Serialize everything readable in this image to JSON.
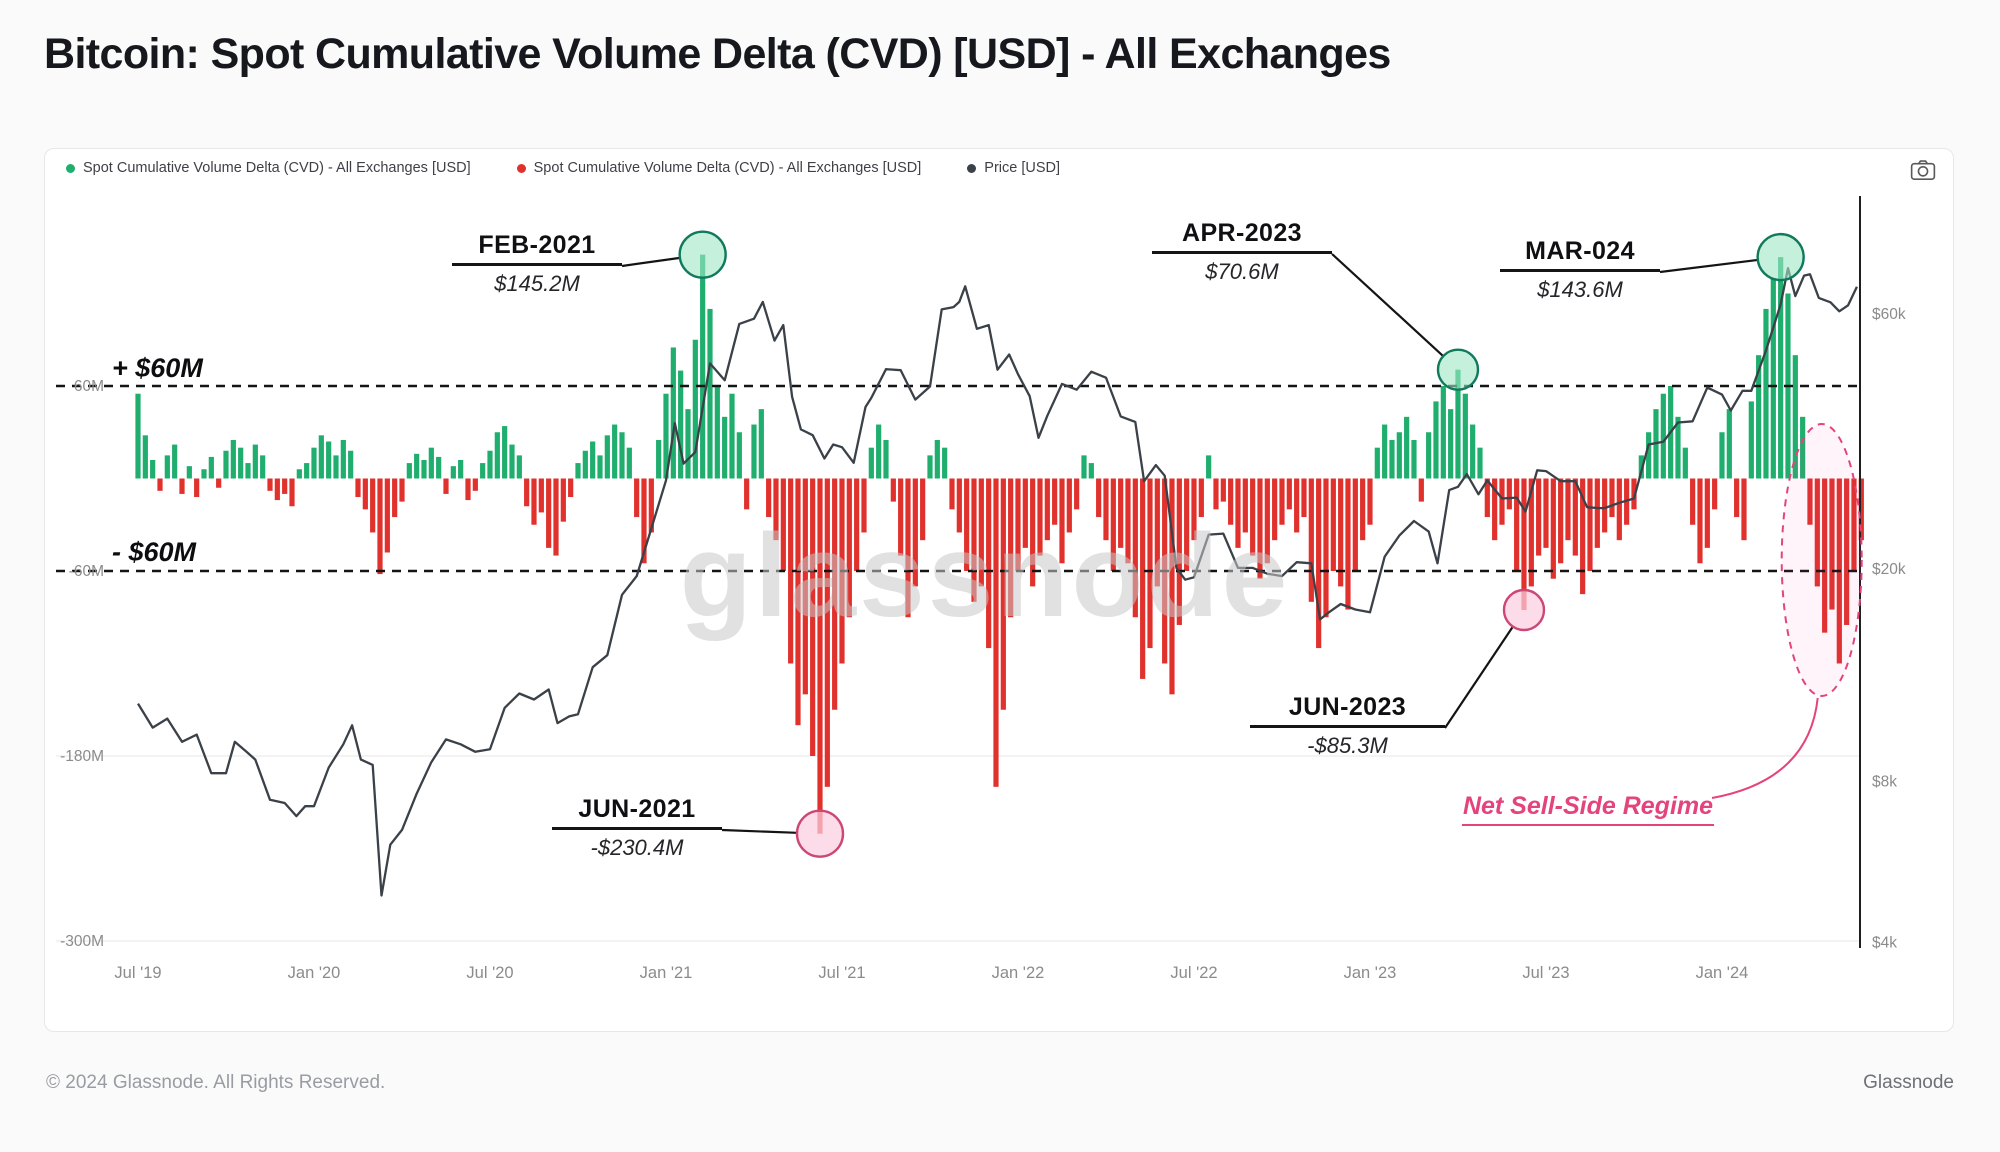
{
  "page": {
    "title": "Bitcoin: Spot Cumulative Volume Delta (CVD) [USD] - All Exchanges",
    "watermark": "glassnode",
    "footer_left": "© 2024 Glassnode. All Rights Reserved.",
    "footer_right": "Glassnode"
  },
  "legend": {
    "items": [
      {
        "label": "Spot Cumulative Volume Delta (CVD) - All Exchanges [USD]",
        "color": "#1fae6e"
      },
      {
        "label": "Spot Cumulative Volume Delta (CVD) - All Exchanges [USD]",
        "color": "#e0312d"
      },
      {
        "label": "Price [USD]",
        "color": "#3b4148"
      }
    ]
  },
  "chart_data": {
    "type": "combo",
    "title": "Bitcoin: Spot Cumulative Volume Delta (CVD) [USD] - All Exchanges",
    "x_tick_labels": [
      "Jul '19",
      "Jan '20",
      "Jul '20",
      "Jan '21",
      "Jul '21",
      "Jan '22",
      "Jul '22",
      "Jan '23",
      "Jul '23",
      "Jan '24"
    ],
    "x_tick_step_months": 6,
    "left_axis": {
      "unit": "USD millions",
      "tick_labels": [
        "60M",
        "-60M",
        "-180M",
        "-300M"
      ],
      "tick_values": [
        60,
        -60,
        -180,
        -300
      ]
    },
    "right_axis": {
      "unit": "USD",
      "scale": "log",
      "tick_labels": [
        "$60k",
        "$20k",
        "$8k",
        "$4k"
      ],
      "tick_values": [
        60000,
        20000,
        8000,
        4000
      ]
    },
    "thresholds": [
      {
        "value": 60,
        "label": "+ $60M",
        "style": "dashed"
      },
      {
        "value": -60,
        "label": "- $60M",
        "style": "dashed"
      }
    ],
    "cvd": {
      "name": "Spot Cumulative Volume Delta (CVD) - All Exchanges [USD]",
      "type": "bar",
      "unit": "M USD",
      "t0_label": "Jul 2019",
      "step_months": 0.25,
      "positive_color": "#1fae6e",
      "negative_color": "#e0312d",
      "values": [
        55,
        28,
        12,
        -8,
        15,
        22,
        -10,
        8,
        -12,
        6,
        14,
        -6,
        18,
        25,
        20,
        10,
        22,
        15,
        -8,
        -14,
        -10,
        -18,
        6,
        10,
        20,
        28,
        24,
        15,
        25,
        18,
        -12,
        -20,
        -35,
        -62,
        -48,
        -25,
        -15,
        10,
        16,
        12,
        20,
        14,
        -10,
        8,
        12,
        -14,
        -8,
        10,
        18,
        30,
        34,
        22,
        15,
        -18,
        -30,
        -22,
        -45,
        -50,
        -28,
        -12,
        10,
        18,
        24,
        15,
        28,
        35,
        30,
        20,
        -25,
        -55,
        -35,
        25,
        55,
        85,
        70,
        45,
        90,
        145.2,
        110,
        60,
        40,
        55,
        30,
        -20,
        35,
        45,
        -25,
        -40,
        -60,
        -120,
        -160,
        -140,
        -180,
        -230.4,
        -200,
        -150,
        -120,
        -90,
        -60,
        -35,
        20,
        35,
        25,
        -15,
        -50,
        -90,
        -70,
        -40,
        15,
        25,
        20,
        -20,
        -35,
        -60,
        -80,
        -70,
        -110,
        -200,
        -150,
        -90,
        -60,
        -45,
        -70,
        -50,
        -40,
        -30,
        -55,
        -35,
        -20,
        15,
        10,
        -25,
        -40,
        -60,
        -45,
        -55,
        -90,
        -130,
        -110,
        -70,
        -120,
        -140,
        -95,
        -60,
        -40,
        -25,
        15,
        -20,
        -15,
        -30,
        -45,
        -35,
        -50,
        -65,
        -55,
        -40,
        -30,
        -20,
        -35,
        -25,
        -80,
        -110,
        -90,
        -60,
        -70,
        -85,
        -60,
        -40,
        -30,
        20,
        35,
        25,
        30,
        40,
        25,
        -15,
        30,
        50,
        60,
        45,
        70.6,
        55,
        35,
        20,
        -25,
        -40,
        -30,
        -20,
        -60,
        -85.3,
        -70,
        -50,
        -45,
        -65,
        -55,
        -40,
        -50,
        -75,
        -60,
        -45,
        -35,
        -25,
        -40,
        -30,
        -20,
        15,
        30,
        45,
        55,
        60,
        40,
        20,
        -30,
        -55,
        -45,
        -20,
        30,
        45,
        -25,
        -40,
        50,
        80,
        110,
        130,
        143.6,
        120,
        80,
        40,
        -30,
        -70,
        -100,
        -85,
        -120,
        -95,
        -60,
        -40
      ]
    },
    "price": {
      "name": "Price [USD]",
      "type": "line",
      "scale": "log",
      "color": "#3b4148",
      "points": [
        [
          0,
          11200
        ],
        [
          0.5,
          10100
        ],
        [
          1,
          10500
        ],
        [
          1.5,
          9500
        ],
        [
          2,
          9800
        ],
        [
          2.5,
          8300
        ],
        [
          3,
          8300
        ],
        [
          3.3,
          9500
        ],
        [
          3.7,
          9100
        ],
        [
          4,
          8800
        ],
        [
          4.5,
          7400
        ],
        [
          5,
          7300
        ],
        [
          5.4,
          6900
        ],
        [
          5.7,
          7200
        ],
        [
          6,
          7200
        ],
        [
          6.5,
          8500
        ],
        [
          7,
          9400
        ],
        [
          7.3,
          10200
        ],
        [
          7.6,
          8800
        ],
        [
          8,
          8600
        ],
        [
          8.3,
          4900
        ],
        [
          8.6,
          6100
        ],
        [
          9,
          6500
        ],
        [
          9.5,
          7600
        ],
        [
          10,
          8700
        ],
        [
          10.5,
          9600
        ],
        [
          11,
          9400
        ],
        [
          11.5,
          9100
        ],
        [
          12,
          9200
        ],
        [
          12.5,
          11000
        ],
        [
          13,
          11700
        ],
        [
          13.5,
          11400
        ],
        [
          14,
          11900
        ],
        [
          14.3,
          10300
        ],
        [
          14.7,
          10600
        ],
        [
          15,
          10700
        ],
        [
          15.5,
          13100
        ],
        [
          16,
          13800
        ],
        [
          16.5,
          17900
        ],
        [
          17,
          19400
        ],
        [
          17.5,
          23800
        ],
        [
          18,
          29300
        ],
        [
          18.3,
          37500
        ],
        [
          18.6,
          31500
        ],
        [
          19,
          33100
        ],
        [
          19.5,
          48500
        ],
        [
          20,
          45100
        ],
        [
          20.5,
          57500
        ],
        [
          21,
          58800
        ],
        [
          21.3,
          63200
        ],
        [
          21.7,
          53500
        ],
        [
          22,
          57200
        ],
        [
          22.3,
          42000
        ],
        [
          22.6,
          36500
        ],
        [
          23,
          35600
        ],
        [
          23.4,
          32200
        ],
        [
          23.7,
          34200
        ],
        [
          24,
          33800
        ],
        [
          24.4,
          31600
        ],
        [
          24.8,
          40200
        ],
        [
          25,
          41800
        ],
        [
          25.5,
          47300
        ],
        [
          26,
          47100
        ],
        [
          26.5,
          41500
        ],
        [
          27,
          43900
        ],
        [
          27.4,
          61200
        ],
        [
          27.8,
          61800
        ],
        [
          28,
          63200
        ],
        [
          28.2,
          67600
        ],
        [
          28.6,
          56300
        ],
        [
          29,
          57200
        ],
        [
          29.3,
          47200
        ],
        [
          29.7,
          50400
        ],
        [
          30,
          46300
        ],
        [
          30.4,
          42100
        ],
        [
          30.7,
          35200
        ],
        [
          31,
          38700
        ],
        [
          31.5,
          44400
        ],
        [
          32,
          43300
        ],
        [
          32.5,
          46800
        ],
        [
          33,
          45600
        ],
        [
          33.5,
          38600
        ],
        [
          34,
          37700
        ],
        [
          34.3,
          29200
        ],
        [
          34.7,
          31300
        ],
        [
          35,
          29900
        ],
        [
          35.4,
          20100
        ],
        [
          35.7,
          19100
        ],
        [
          36,
          19300
        ],
        [
          36.5,
          23200
        ],
        [
          37,
          23300
        ],
        [
          37.5,
          20100
        ],
        [
          38,
          20100
        ],
        [
          38.5,
          19600
        ],
        [
          39,
          19400
        ],
        [
          39.5,
          20600
        ],
        [
          40,
          20500
        ],
        [
          40.3,
          16100
        ],
        [
          40.6,
          16600
        ],
        [
          41,
          17200
        ],
        [
          41.5,
          16800
        ],
        [
          42,
          16600
        ],
        [
          42.5,
          21100
        ],
        [
          43,
          23100
        ],
        [
          43.5,
          24600
        ],
        [
          44,
          23500
        ],
        [
          44.3,
          20500
        ],
        [
          44.7,
          28100
        ],
        [
          45,
          28500
        ],
        [
          45.3,
          30100
        ],
        [
          45.7,
          27600
        ],
        [
          46,
          29300
        ],
        [
          46.5,
          27100
        ],
        [
          47,
          27200
        ],
        [
          47.3,
          25600
        ],
        [
          47.7,
          30600
        ],
        [
          48,
          30500
        ],
        [
          48.5,
          29200
        ],
        [
          49,
          29200
        ],
        [
          49.4,
          26100
        ],
        [
          49.8,
          26000
        ],
        [
          50,
          26000
        ],
        [
          50.5,
          26600
        ],
        [
          51,
          27100
        ],
        [
          51.5,
          34200
        ],
        [
          52,
          34600
        ],
        [
          52.5,
          37600
        ],
        [
          53,
          37800
        ],
        [
          53.5,
          43700
        ],
        [
          54,
          42400
        ],
        [
          54.3,
          39600
        ],
        [
          54.7,
          43100
        ],
        [
          55,
          43100
        ],
        [
          55.5,
          51300
        ],
        [
          56,
          62500
        ],
        [
          56.25,
          73100
        ],
        [
          56.5,
          64800
        ],
        [
          56.8,
          70800
        ],
        [
          57,
          71200
        ],
        [
          57.3,
          64300
        ],
        [
          57.7,
          63100
        ],
        [
          58,
          60700
        ],
        [
          58.3,
          62300
        ],
        [
          58.6,
          67500
        ]
      ]
    },
    "annotations": {
      "callouts": [
        {
          "id": "feb-2021",
          "title": "FEB-2021",
          "value_label": "$145.2M",
          "t": 19.25,
          "value": 145.2,
          "style": "green"
        },
        {
          "id": "apr-2023",
          "title": "APR-2023",
          "value_label": "$70.6M",
          "t": 45.0,
          "value": 70.6,
          "style": "green"
        },
        {
          "id": "mar-024",
          "title": "MAR-024",
          "value_label": "$143.6M",
          "t": 56.0,
          "value": 143.6,
          "style": "green"
        },
        {
          "id": "jun-2021",
          "title": "JUN-2021",
          "value_label": "-$230.4M",
          "t": 23.25,
          "value": -230.4,
          "style": "red"
        },
        {
          "id": "jun-2023",
          "title": "JUN-2023",
          "value_label": "-$85.3M",
          "t": 47.25,
          "value": -85.3,
          "style": "red"
        }
      ],
      "regime": {
        "label": "Net Sell-Side Regime",
        "t_center": 57.4,
        "color": "#e3447c"
      }
    }
  }
}
